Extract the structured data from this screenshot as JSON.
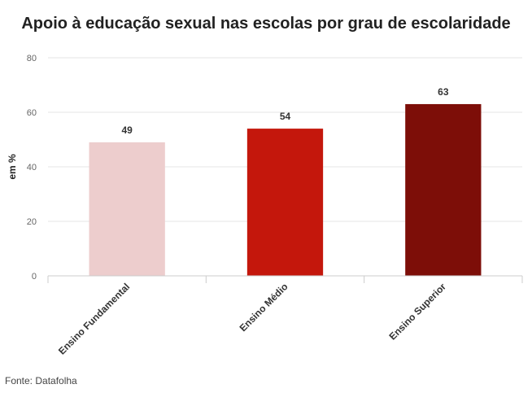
{
  "chart_data": {
    "type": "bar",
    "title": "Apoio à educação sexual nas escolas por grau de escolaridade",
    "xlabel": "",
    "ylabel": "em %",
    "categories": [
      "Ensino Fundamental",
      "Ensino Médio",
      "Ensino Superior"
    ],
    "values": [
      49,
      54,
      63
    ],
    "colors": [
      "#edcdcd",
      "#c4170c",
      "#7d0e08"
    ],
    "ylim": [
      0,
      80
    ],
    "yticks": [
      "0",
      "20",
      "40",
      "60",
      "80"
    ],
    "grid": true,
    "legend": "none"
  },
  "footer": {
    "source": "Fonte: Datafolha"
  },
  "colors": {
    "grid": "#e6e6e6",
    "axis": "#cccccc"
  }
}
